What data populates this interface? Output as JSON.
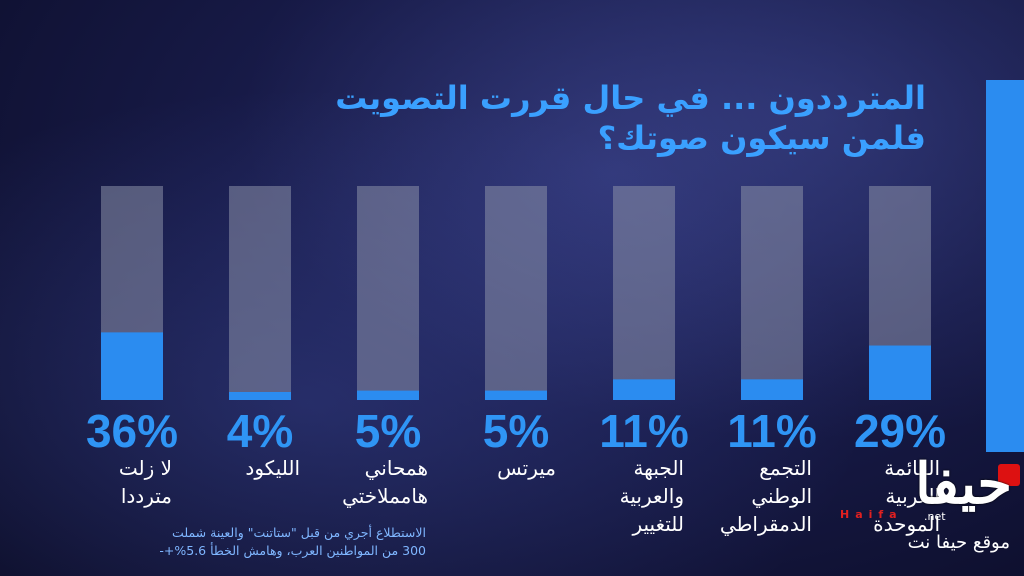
{
  "title": {
    "line1": "المترددون ... في حال قررت التصويت",
    "line2": "فلمن سيكون صوتك؟"
  },
  "chart_data": {
    "type": "bar",
    "orientation": "vertical",
    "ylim": [
      0,
      100
    ],
    "categories": [
      "القائمة العربية الموحدة",
      "التجمع الوطني الدمقراطي",
      "الجبهة والعربية للتغيير",
      "ميرتس",
      "همحاني هامملاختي",
      "الليكود",
      "لا زلت مترددا"
    ],
    "values": [
      29,
      11,
      11,
      5,
      5,
      4,
      36
    ],
    "value_labels": [
      "29%",
      "11%",
      "11%",
      "5%",
      "5%",
      "4%",
      "36%"
    ],
    "label_lines": [
      [
        "القائمة",
        "العربية",
        "الموحدة"
      ],
      [
        "التجمع",
        "الوطني",
        "الدمقراطي"
      ],
      [
        "الجبهة",
        "والعربية",
        "للتغيير"
      ],
      [
        "ميرتس"
      ],
      [
        "همحاني",
        "هامملاختي"
      ],
      [
        "الليكود"
      ],
      [
        "لا زلت",
        "مترددا"
      ]
    ],
    "colors": {
      "fill": "#2b8cf0",
      "track": "#8a8fa8"
    }
  },
  "footnote": {
    "line1": "الاستطلاع أجري من قبل \"ستاتنت\" والعينة شملت",
    "line2": "300 من المواطنين العرب، وهامش الخطأ 5.6%+-"
  },
  "logo": {
    "mark": "حيفا",
    "latin": "Haifa",
    "net": ".net",
    "site": "موقع حيفا نت"
  }
}
